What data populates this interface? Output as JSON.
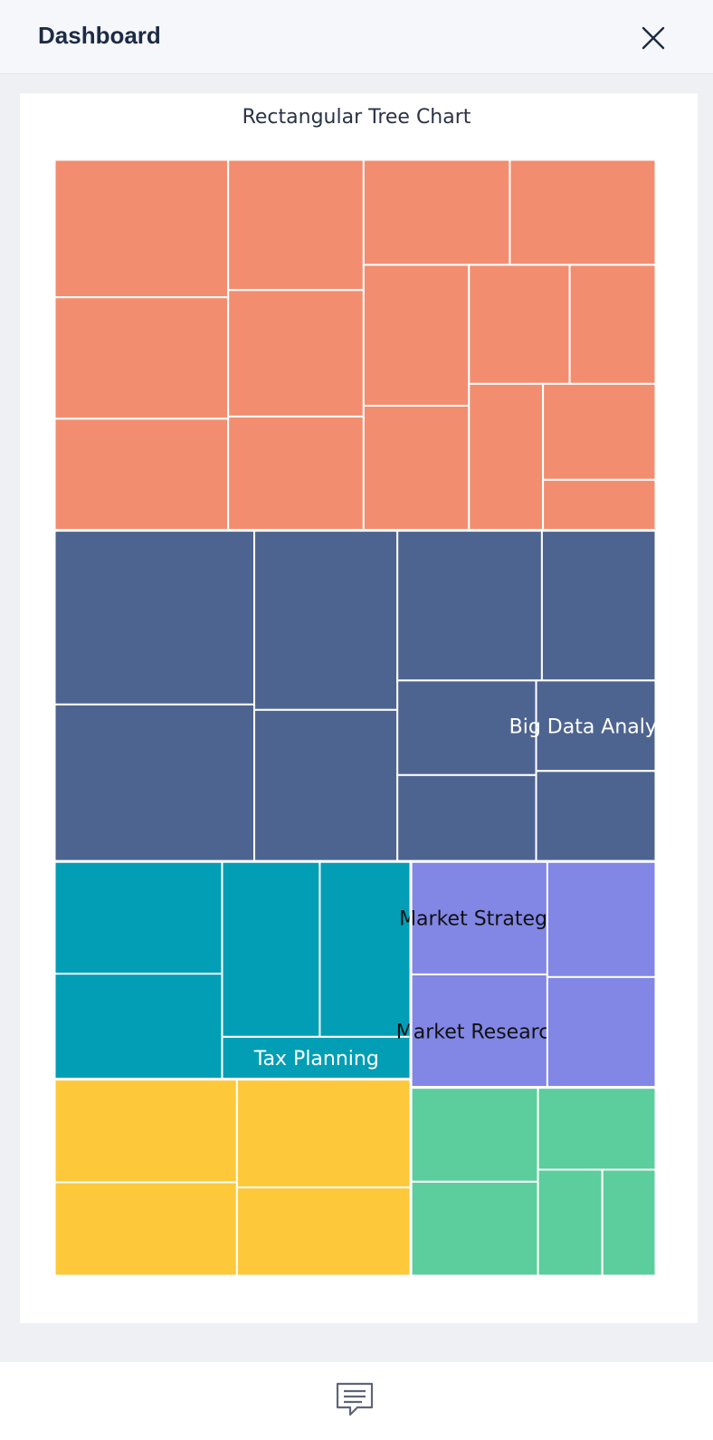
{
  "header": {
    "title": "Dashboard",
    "close_icon": "close-icon"
  },
  "footer": {
    "chat_icon": "chat-icon"
  },
  "chart_data": {
    "type": "treemap",
    "title": "Rectangular Tree Chart",
    "series": [
      {
        "color": "#f38d6f",
        "children": [
          {
            "value": 4.2
          },
          {
            "value": 3.7
          },
          {
            "value": 3.4
          },
          {
            "value": 3.1
          },
          {
            "value": 3.0
          },
          {
            "value": 2.7
          },
          {
            "value": 2.7
          },
          {
            "value": 2.7
          },
          {
            "value": 2.6
          },
          {
            "value": 2.3
          },
          {
            "value": 2.1
          },
          {
            "value": 1.8
          },
          {
            "value": 1.9
          },
          {
            "value": 1.9
          },
          {
            "value": 1.0
          }
        ]
      },
      {
        "color": "#4e6490",
        "children": [
          {
            "value": 6.1
          },
          {
            "value": 5.5
          },
          {
            "value": 4.5
          },
          {
            "value": 3.8
          },
          {
            "value": 3.8
          },
          {
            "value": 3.0
          },
          {
            "value": 2.3
          },
          {
            "value": 2.1
          },
          {
            "value": 1.9,
            "label": "Big Data Analysis"
          },
          {
            "value": 1.9
          }
        ]
      },
      {
        "color": "#029eb5",
        "children": [
          {
            "value": 3.3
          },
          {
            "value": 3.1
          },
          {
            "value": 3.0
          },
          {
            "value": 2.8
          },
          {
            "value": 1.4,
            "label": "Tax Planning"
          }
        ]
      },
      {
        "color": "#fdc83a",
        "children": [
          {
            "value": 3.3
          },
          {
            "value": 3.0
          },
          {
            "value": 3.3
          },
          {
            "value": 2.7
          }
        ]
      },
      {
        "color": "#8286e4",
        "children": [
          {
            "value": 2.7,
            "label": "Market Strategy"
          },
          {
            "value": 2.7,
            "label": "Market Research"
          },
          {
            "value": 2.2
          },
          {
            "value": 2.1
          }
        ]
      },
      {
        "color": "#5ccd9c",
        "children": [
          {
            "value": 2.1
          },
          {
            "value": 2.1
          },
          {
            "value": 1.7
          },
          {
            "value": 1.2
          },
          {
            "value": 1.0
          }
        ]
      }
    ]
  }
}
